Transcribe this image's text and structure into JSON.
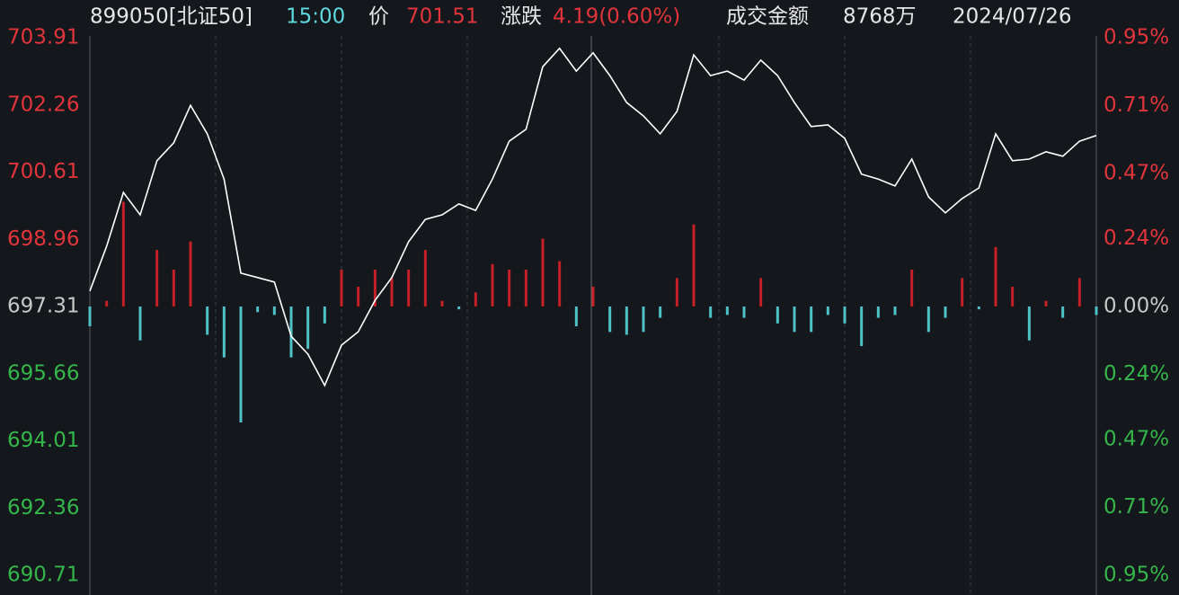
{
  "header": {
    "code": "899050[北证50]",
    "time": "15:00",
    "price_label": "价",
    "price": "701.51",
    "change_label": "涨跌",
    "change": "4.19(0.60%)",
    "turnover_label": "成交金额",
    "turnover": "8768万",
    "date": "2024/07/26"
  },
  "chart_data": {
    "type": "line",
    "ylim": [
      690.71,
      703.91
    ],
    "yticks": [
      703.91,
      702.26,
      700.61,
      698.96,
      697.31,
      695.66,
      694.01,
      692.36,
      690.71
    ],
    "y2lim": [
      -0.95,
      0.95
    ],
    "y2ticks": [
      {
        "value": 0.95,
        "label": "0.95%"
      },
      {
        "value": 0.71,
        "label": "0.71%"
      },
      {
        "value": 0.47,
        "label": "0.47%"
      },
      {
        "value": 0.24,
        "label": "0.24%"
      },
      {
        "value": 0,
        "label": "0.00%"
      },
      {
        "value": -0.24,
        "label": "0.24%"
      },
      {
        "value": -0.47,
        "label": "0.47%"
      },
      {
        "value": -0.71,
        "label": "0.71%"
      },
      {
        "value": -0.95,
        "label": "0.95%"
      }
    ],
    "up_color": "#e0353b",
    "down_color": "#35b64a",
    "flat_color": "#c8c8c8",
    "series": [
      {
        "type": "line",
        "color": "#ffffff",
        "values": [
          697.69,
          698.79,
          700.11,
          699.56,
          700.89,
          701.33,
          702.25,
          701.55,
          700.44,
          698.13,
          698.02,
          697.91,
          696.58,
          696.14,
          695.37,
          696.36,
          696.69,
          697.46,
          698.02,
          698.9,
          699.45,
          699.56,
          699.83,
          699.67,
          700.44,
          701.37,
          701.66,
          703.2,
          703.65,
          703.09,
          703.54,
          702.98,
          702.32,
          701.99,
          701.55,
          702.1,
          703.49,
          702.98,
          703.09,
          702.87,
          703.36,
          702.98,
          702.32,
          701.73,
          701.77,
          701.44,
          700.56,
          700.44,
          700.27,
          700.93,
          700.0,
          699.61,
          699.96,
          700.22,
          701.55,
          700.89,
          700.93,
          701.11,
          701.0,
          701.37,
          701.51
        ]
      },
      {
        "type": "bar",
        "axis": "y2",
        "color": "#c62028",
        "negative_color": "#4fc2c8",
        "values": [
          -0.07,
          0.02,
          0.37,
          -0.12,
          0.2,
          0.13,
          0.23,
          -0.1,
          -0.18,
          -0.41,
          -0.02,
          -0.03,
          -0.18,
          -0.15,
          -0.06,
          0.13,
          0.07,
          0.13,
          0.1,
          0.13,
          0.2,
          0.02,
          -0.01,
          0.05,
          0.15,
          0.13,
          0.13,
          0.24,
          0.16,
          -0.07,
          0.07,
          -0.09,
          -0.1,
          -0.09,
          -0.04,
          0.1,
          0.29,
          -0.04,
          -0.03,
          -0.04,
          0.1,
          -0.06,
          -0.09,
          -0.09,
          -0.03,
          -0.06,
          -0.14,
          -0.04,
          -0.03,
          0.13,
          -0.09,
          -0.04,
          0.1,
          -0.01,
          0.21,
          0.07,
          -0.12,
          0.02,
          -0.04,
          0.1,
          -0.03
        ]
      }
    ]
  }
}
